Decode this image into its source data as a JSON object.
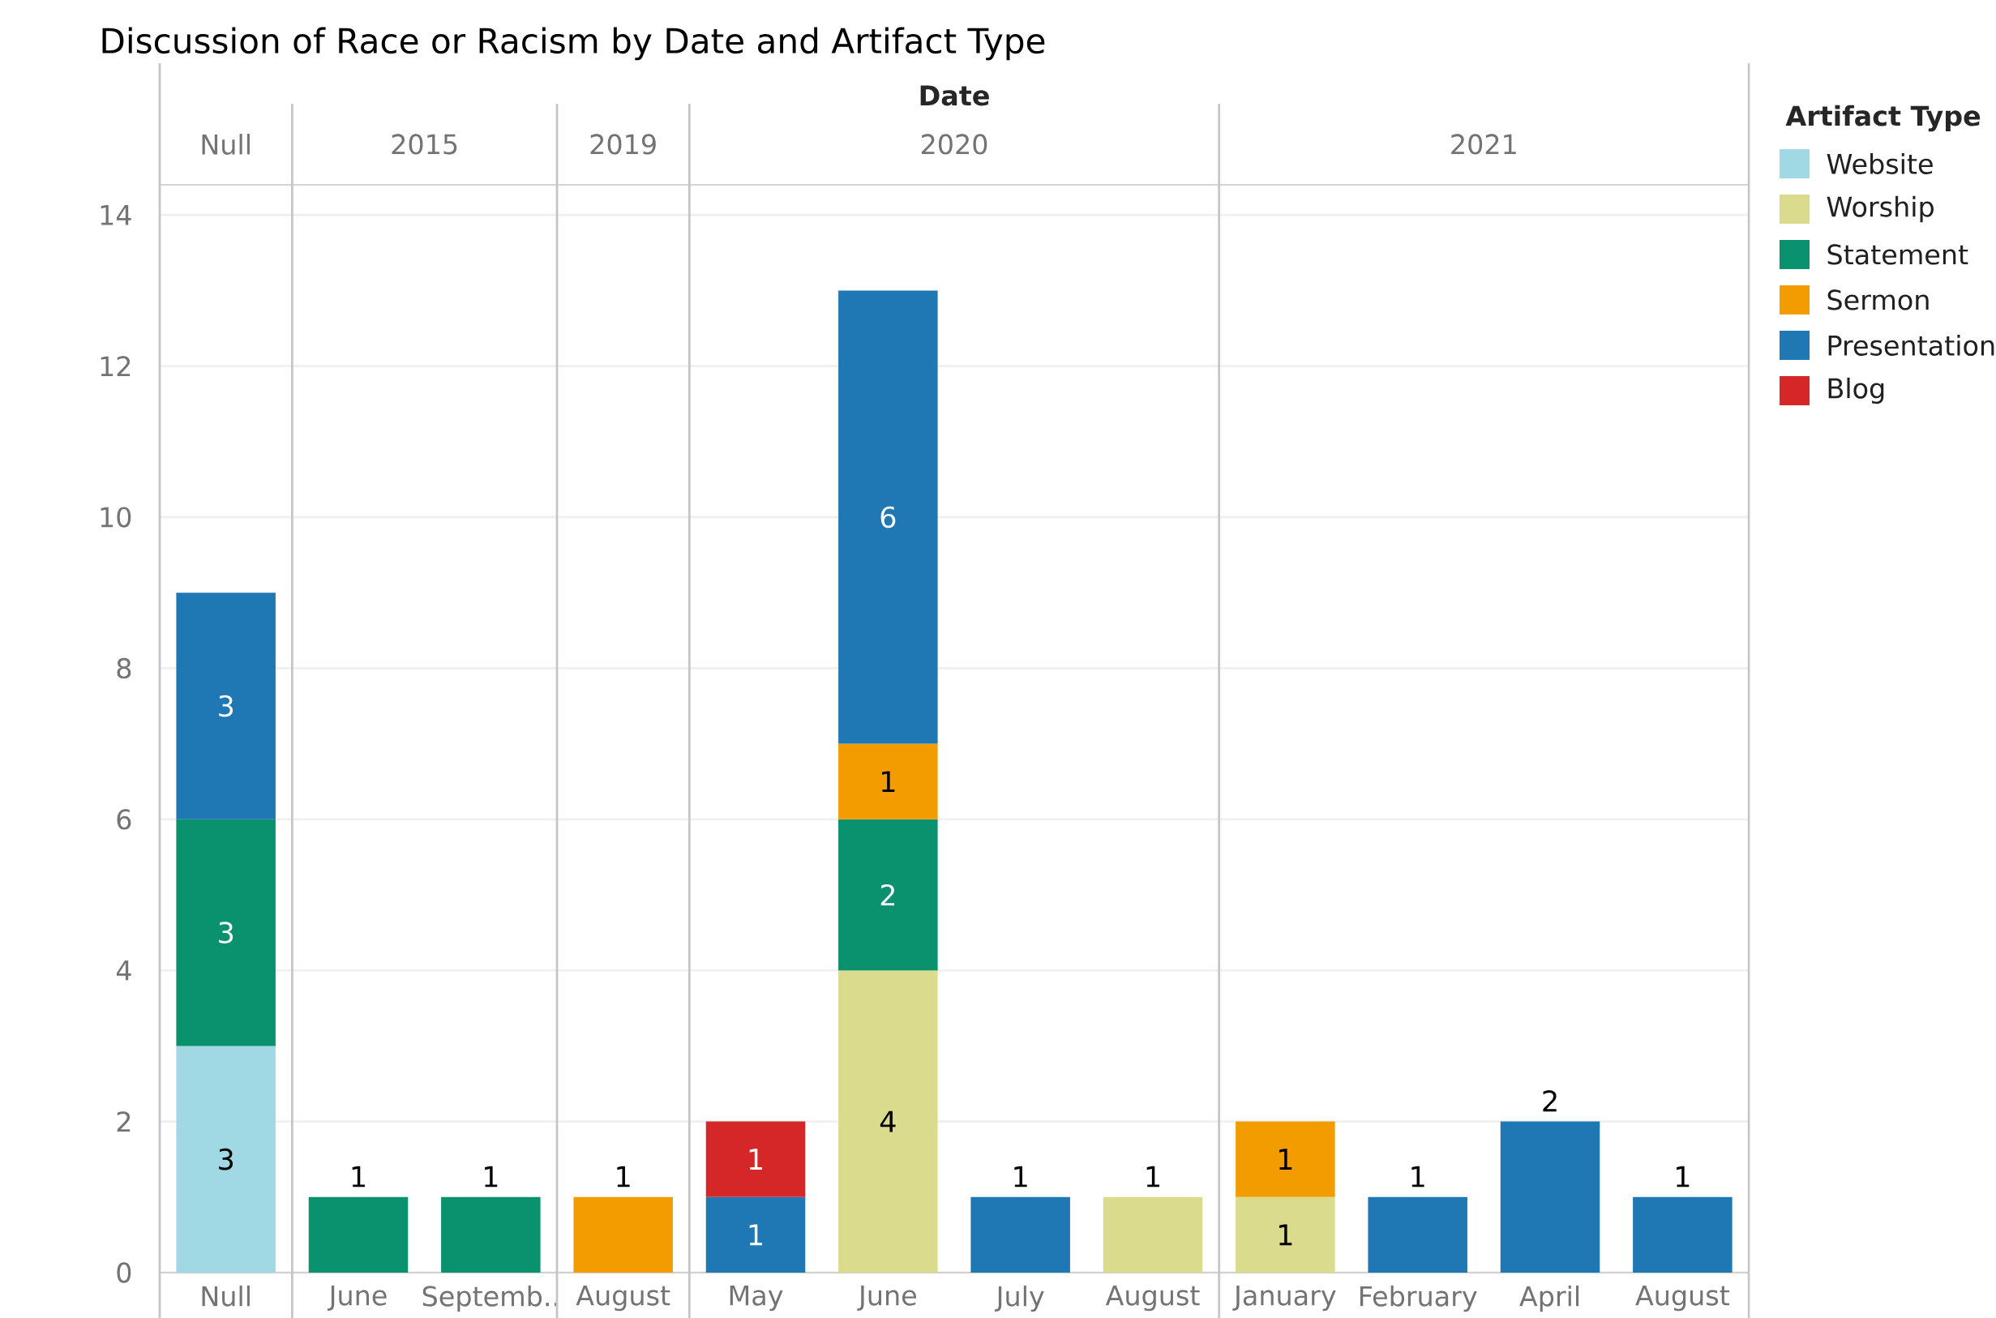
{
  "chart_data": {
    "type": "bar",
    "title": "Discussion of Race or Racism by Date and Artifact Type",
    "xlabel": "Date",
    "legend_title": "Artifact Type",
    "categories": [
      "Null",
      "June",
      "Septemb..",
      "August",
      "May",
      "June",
      "July",
      "August",
      "January",
      "February",
      "April",
      "August"
    ],
    "annotations": [
      "Null",
      "2015",
      "2019",
      "2020",
      "2021"
    ],
    "stacked": true,
    "data_labels": true,
    "grid": "y",
    "legend": "right",
    "ylim": [
      0,
      14.4
    ],
    "yticks": [
      0,
      2,
      4,
      6,
      8,
      10,
      12,
      14
    ],
    "series": [
      {
        "name": "Website",
        "color": "#a0d8e3",
        "values": [
          3,
          null,
          null,
          null,
          null,
          null,
          null,
          null,
          null,
          null,
          null,
          null
        ]
      },
      {
        "name": "Worship",
        "color": "#dbdb8d",
        "values": [
          null,
          null,
          null,
          null,
          null,
          4,
          null,
          1,
          1,
          null,
          null,
          null
        ]
      },
      {
        "name": "Statement",
        "color": "#0a916d",
        "values": [
          3,
          1,
          1,
          null,
          null,
          2,
          null,
          null,
          null,
          null,
          null,
          null
        ]
      },
      {
        "name": "Sermon",
        "color": "#f39c00",
        "values": [
          null,
          null,
          null,
          1,
          null,
          1,
          null,
          null,
          1,
          null,
          null,
          null
        ]
      },
      {
        "name": "Presentation",
        "color": "#1f77b4",
        "values": [
          3,
          null,
          null,
          null,
          1,
          6,
          1,
          null,
          null,
          1,
          2,
          1
        ]
      },
      {
        "name": "Blog",
        "color": "#d62728",
        "values": [
          null,
          null,
          null,
          null,
          1,
          null,
          null,
          null,
          null,
          null,
          null,
          null
        ]
      }
    ]
  }
}
